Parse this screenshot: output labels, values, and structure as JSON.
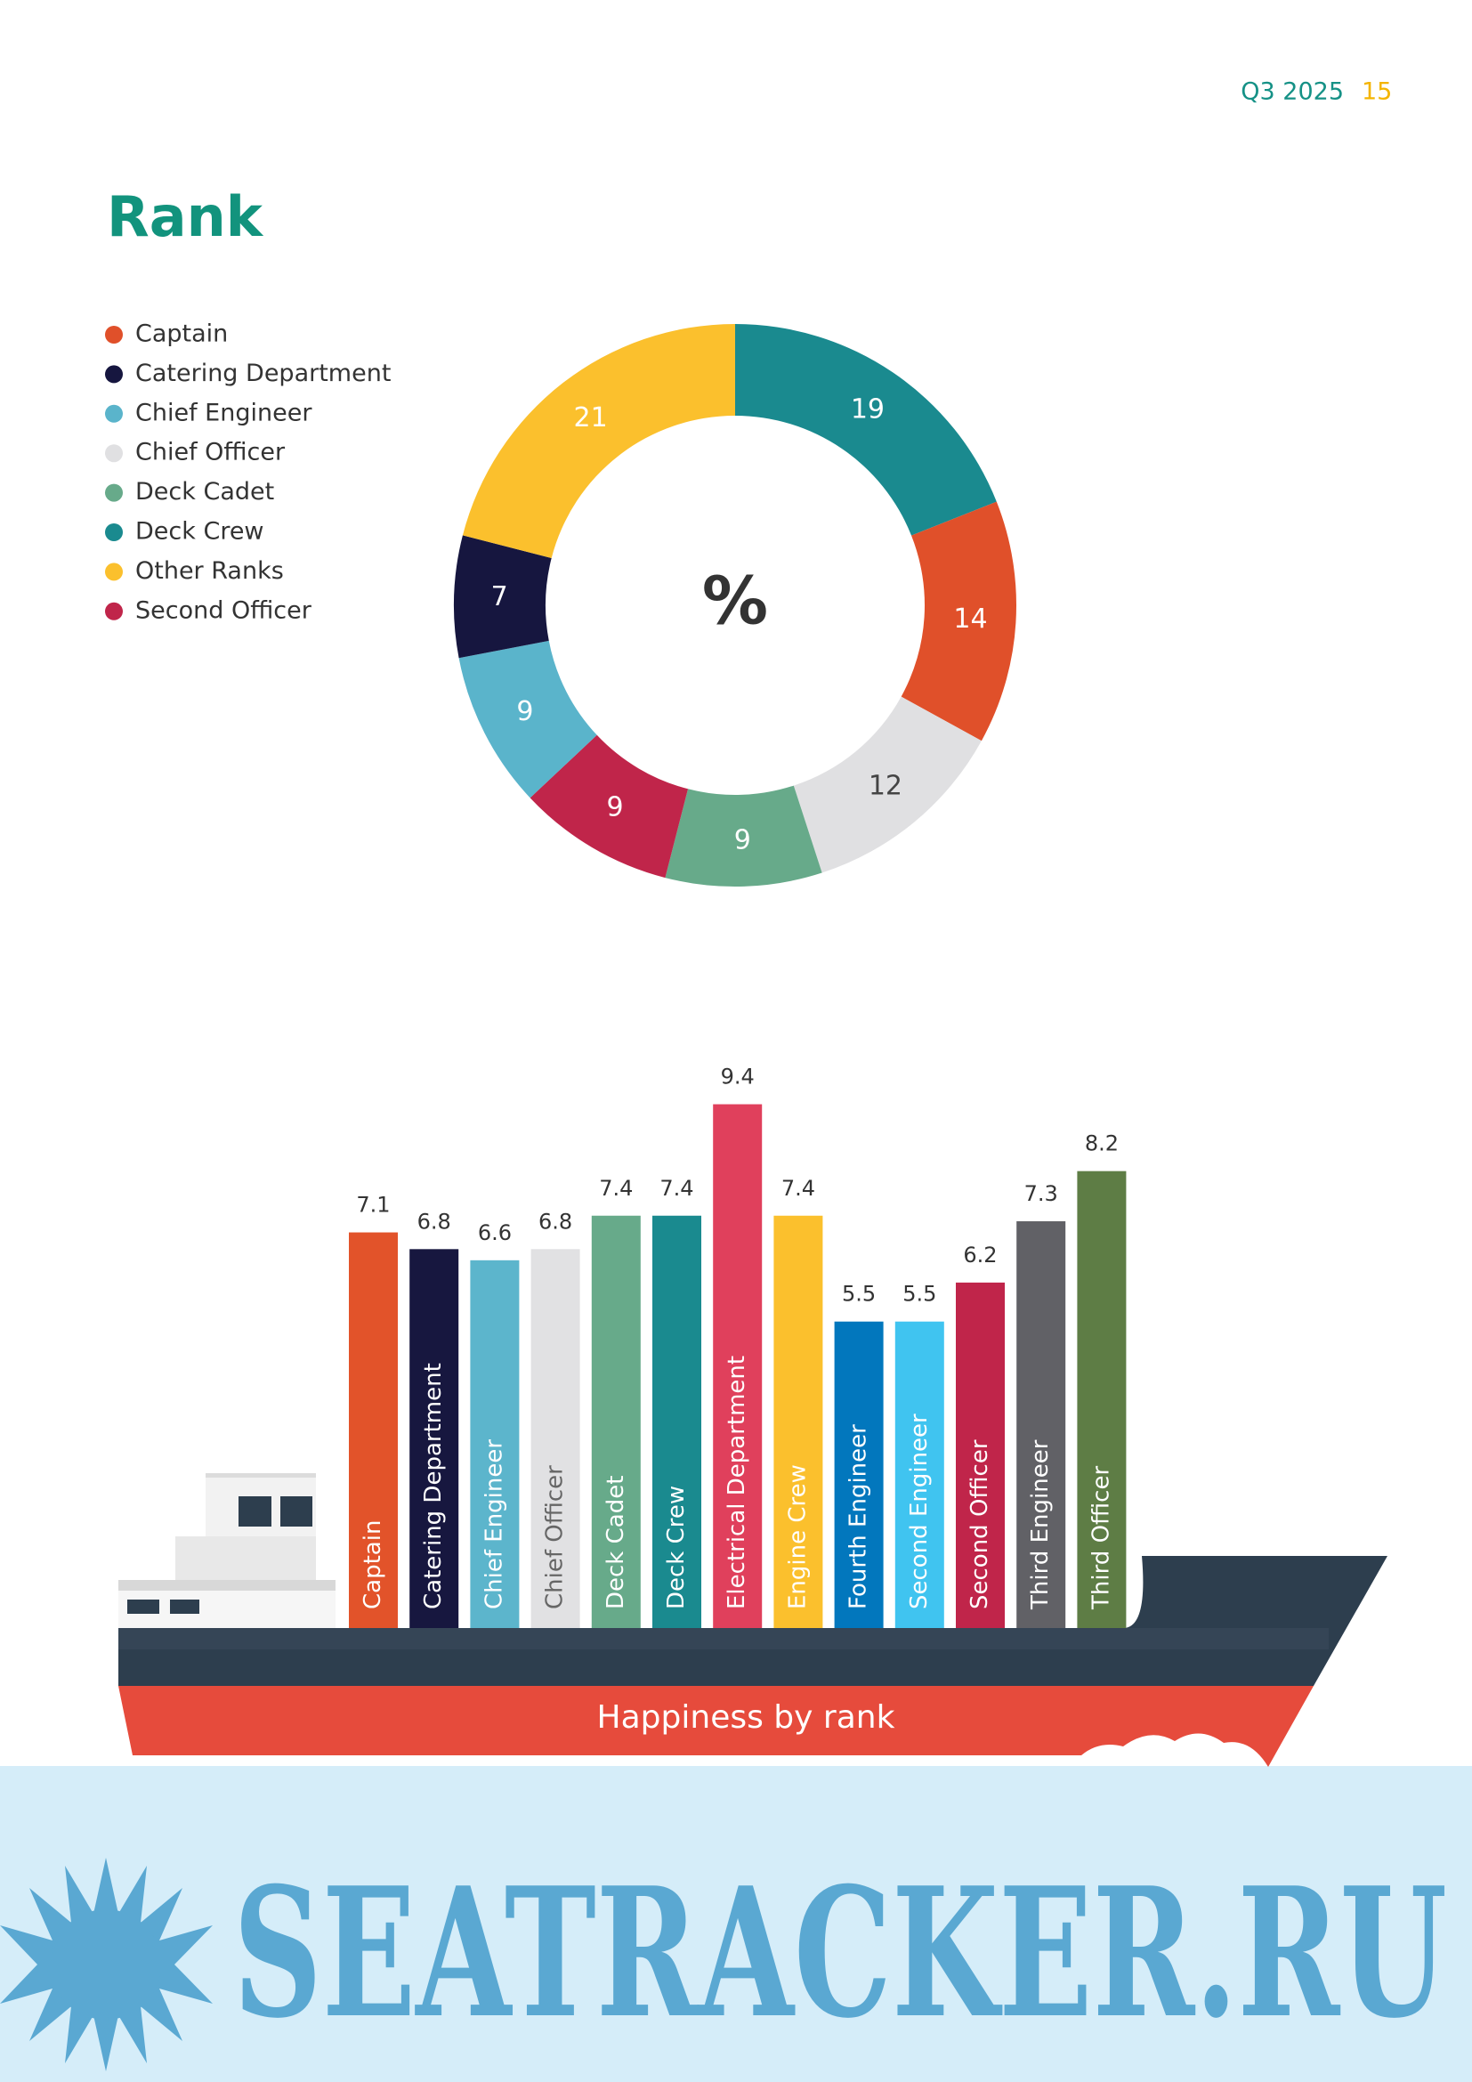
{
  "header": {
    "period": "Q3 2025",
    "page": "15"
  },
  "title": "Rank",
  "chart_data": [
    {
      "type": "donut",
      "center_label": "%",
      "categories": [
        "Deck Crew",
        "Captain",
        "Chief Officer",
        "Deck Cadet",
        "Second Officer",
        "Chief Engineer",
        "Catering Department",
        "Other Ranks"
      ],
      "values": [
        19,
        14,
        12,
        9,
        9,
        9,
        7,
        21
      ],
      "colors": [
        "#1a8a8f",
        "#e0502a",
        "#e0e0e2",
        "#67aa8a",
        "#c0254a",
        "#5ab4cb",
        "#16163f",
        "#fbc02d"
      ]
    },
    {
      "type": "bar",
      "title": "Happiness by rank",
      "categories": [
        "Captain",
        "Catering Department",
        "Chief Engineer",
        "Chief Officer",
        "Deck Cadet",
        "Deck Crew",
        "Electrical Department",
        "Engine Crew",
        "Fourth Engineer",
        "Second Engineer",
        "Second Officer",
        "Third Engineer",
        "Third Officer"
      ],
      "values": [
        7.1,
        6.8,
        6.6,
        6.8,
        7.4,
        7.4,
        9.4,
        7.4,
        5.5,
        5.5,
        6.2,
        7.3,
        8.2
      ],
      "colors": [
        "#e2532a",
        "#17173f",
        "#5cb5cc",
        "#e1e1e3",
        "#67aa8a",
        "#1a8a8f",
        "#e0405c",
        "#fbc02d",
        "#0277bd",
        "#40c4f0",
        "#c0254a",
        "#616166",
        "#5e7d45"
      ]
    }
  ],
  "watermark": "SEATRACKER.RU"
}
